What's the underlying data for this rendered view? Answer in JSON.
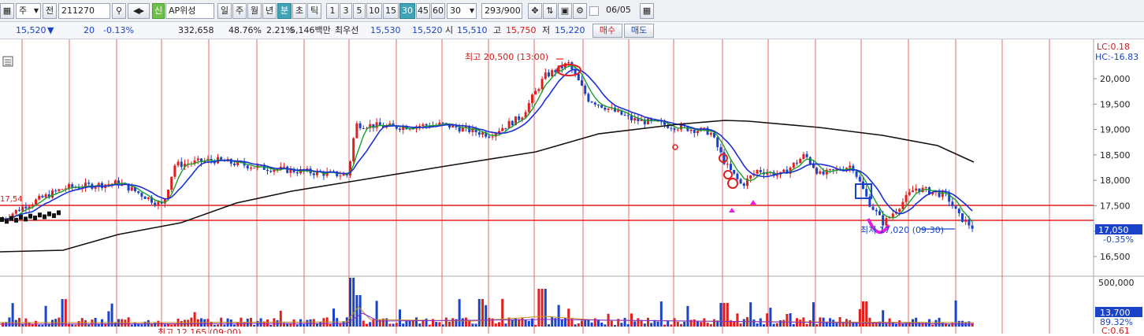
{
  "toolbar": {
    "market": "주",
    "code_label": "전",
    "code": "211270",
    "badge": "신",
    "stock_name": "AP위성",
    "periods": [
      "일",
      "주",
      "월",
      "년",
      "분",
      "초",
      "틱"
    ],
    "active_period": "분",
    "intervals": [
      "1",
      "3",
      "5",
      "10",
      "15",
      "30",
      "45",
      "60"
    ],
    "active_interval": "30",
    "interval_select": "30",
    "count": "293",
    "count_total": "/900",
    "date": "06/05"
  },
  "quote": {
    "price": "15,520",
    "change_arrow": "▼",
    "change": "20",
    "change_pct": "-0.13%",
    "volume": "332,658",
    "vol_ratio": "48.76%",
    "turnover": "2.21%",
    "amount": "5,146백만",
    "best_label": "최우선",
    "best_ask": "15,530",
    "best_bid": "15,520",
    "open_label": "시",
    "open": "15,510",
    "high_label": "고",
    "high": "15,750",
    "low_label": "저",
    "low": "15,220",
    "buy": "매수",
    "sell": "매도"
  },
  "chart": {
    "lc": "LC:0.18",
    "hc": "HC:-16.83",
    "y_ticks": [
      "20,000",
      "19,500",
      "19,000",
      "18,500",
      "18,000",
      "17,500",
      "17,000",
      "16,500"
    ],
    "price_tag": "17,050",
    "price_tag_pct": "-0.35%",
    "left_label": "17,54",
    "high_annotation": "최고 20,500 (13:00)",
    "low_annotation": "최저 17,020 (09:30)",
    "vol_ticks": [
      "500,000"
    ],
    "vol_tag": "13,700",
    "vol_tag_pct": "89.32%",
    "bottom_annotation": "최고 12,165 (09:00)",
    "bottom_right": "C:0.61"
  },
  "colors": {
    "up": "#e0201e",
    "down": "#1b43c7",
    "ma_short": "#1a9e2a",
    "ma_mid": "#1b2fd8",
    "ma_long": "#111111",
    "hline": "#e0201e",
    "magenta": "#e51ee5"
  }
}
